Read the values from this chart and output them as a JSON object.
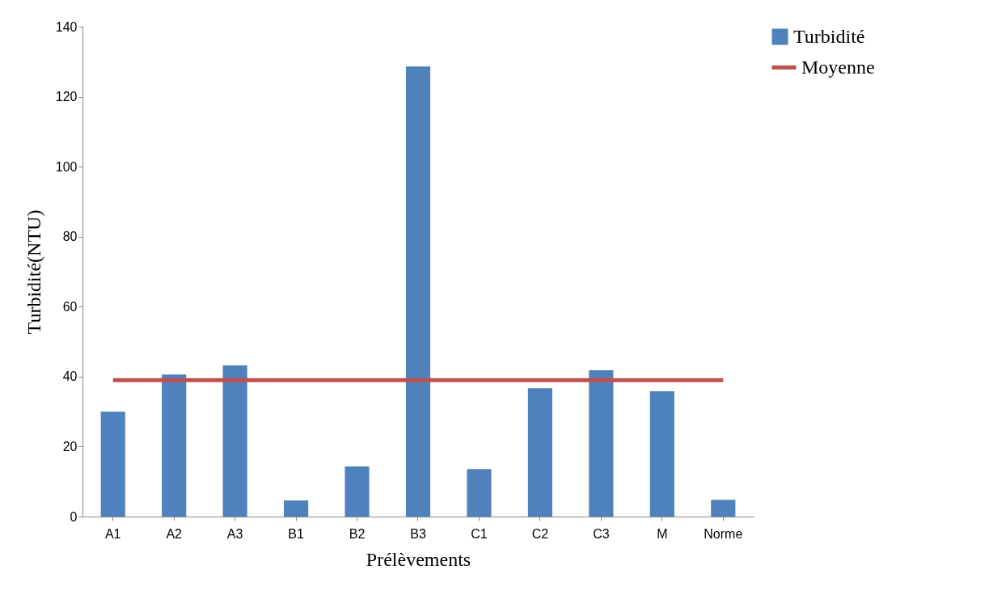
{
  "chart_data": {
    "type": "bar",
    "xlabel": "Prélèvements",
    "ylabel": "Turbidité(NTU)",
    "categories": [
      "A1",
      "A2",
      "A3",
      "B1",
      "B2",
      "B3",
      "C1",
      "C2",
      "C3",
      "M",
      "Norme"
    ],
    "series": [
      {
        "name": "Turbidité",
        "color": "#4f81bd",
        "values": [
          30.0,
          40.6,
          43.2,
          4.6,
          14.3,
          128.6,
          13.6,
          36.7,
          41.8,
          35.8,
          4.8
        ]
      },
      {
        "name": "Moyenne",
        "type": "line",
        "color": "#c0504d",
        "values": [
          39,
          39,
          39,
          39,
          39,
          39,
          39,
          39,
          39,
          39,
          39
        ]
      }
    ],
    "ylim": [
      0,
      140
    ],
    "yticks": [
      0,
      20,
      40,
      60,
      80,
      100,
      120,
      140
    ],
    "grid": false,
    "legend": "right"
  }
}
